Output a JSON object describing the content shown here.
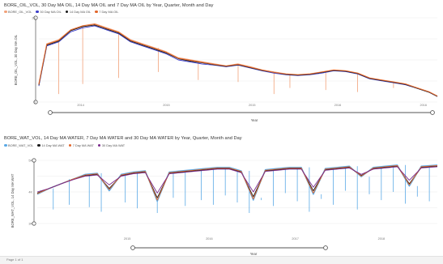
{
  "chart_data": [
    {
      "type": "line",
      "title": "BORE_OIL_VOL, 30 Day MA OIL, 14 Day MA OIL and 7 Day MA OIL by Year, Quarter, Month and Day",
      "xlabel": "Year",
      "ylabel": "BORE_OIL_VOL, 30 Day MA OIL",
      "x_ticks": [
        "2014",
        "2015",
        "2015",
        "2016",
        "2016"
      ],
      "y_ticks": [
        "2K",
        "",
        "0"
      ],
      "ylim": [
        0,
        2.1
      ],
      "grid": true,
      "legend_position": "top-left",
      "legend": [
        "BORE_OIL_VOL",
        "30 Day MA OIL",
        "14 Day MA OIL",
        "7 Day MA OIL"
      ],
      "series_colors": [
        "#f2a27a",
        "#3d3ec9",
        "#1a1a1a",
        "#e2662a"
      ],
      "x": [
        0.0,
        0.02,
        0.05,
        0.08,
        0.11,
        0.14,
        0.17,
        0.2,
        0.23,
        0.26,
        0.29,
        0.32,
        0.35,
        0.38,
        0.41,
        0.44,
        0.47,
        0.5,
        0.53,
        0.56,
        0.59,
        0.62,
        0.65,
        0.68,
        0.71,
        0.74,
        0.77,
        0.8,
        0.83,
        0.86,
        0.89,
        0.92,
        0.95,
        0.98,
        1.0
      ],
      "series": [
        {
          "values": [
            0.45,
            1.45,
            1.55,
            1.8,
            1.9,
            1.95,
            1.85,
            1.75,
            1.55,
            1.45,
            1.35,
            1.25,
            1.1,
            1.05,
            1.0,
            0.95,
            0.9,
            0.95,
            0.88,
            0.8,
            0.75,
            0.7,
            0.68,
            0.7,
            0.75,
            0.8,
            0.78,
            0.72,
            0.6,
            0.55,
            0.5,
            0.45,
            0.35,
            0.25,
            0.15
          ]
        },
        {
          "values": [
            0.4,
            1.4,
            1.5,
            1.75,
            1.85,
            1.9,
            1.8,
            1.7,
            1.5,
            1.4,
            1.3,
            1.2,
            1.05,
            1.0,
            0.95,
            0.92,
            0.88,
            0.92,
            0.85,
            0.78,
            0.72,
            0.68,
            0.66,
            0.68,
            0.72,
            0.78,
            0.76,
            0.7,
            0.58,
            0.53,
            0.48,
            0.43,
            0.34,
            0.24,
            0.14
          ]
        },
        {
          "values": [
            0.42,
            1.42,
            1.52,
            1.78,
            1.88,
            1.92,
            1.82,
            1.72,
            1.52,
            1.42,
            1.32,
            1.22,
            1.08,
            1.02,
            0.98,
            0.93,
            0.89,
            0.93,
            0.86,
            0.79,
            0.74,
            0.69,
            0.67,
            0.69,
            0.74,
            0.79,
            0.77,
            0.71,
            0.59,
            0.54,
            0.49,
            0.44,
            0.34,
            0.24,
            0.14
          ]
        },
        {
          "values": [
            0.44,
            1.44,
            1.54,
            1.8,
            1.9,
            1.94,
            1.84,
            1.74,
            1.54,
            1.44,
            1.34,
            1.24,
            1.09,
            1.04,
            0.99,
            0.94,
            0.9,
            0.94,
            0.87,
            0.8,
            0.74,
            0.7,
            0.68,
            0.7,
            0.75,
            0.8,
            0.78,
            0.72,
            0.6,
            0.55,
            0.5,
            0.45,
            0.35,
            0.25,
            0.15
          ]
        }
      ],
      "dips": [
        [
          0.05,
          0.2
        ],
        [
          0.11,
          0.45
        ],
        [
          0.2,
          0.6
        ],
        [
          0.3,
          0.75
        ],
        [
          0.4,
          0.55
        ],
        [
          0.5,
          0.5
        ],
        [
          0.59,
          0.2
        ],
        [
          0.63,
          0.35
        ],
        [
          0.72,
          0.3
        ],
        [
          0.8,
          0.25
        ],
        [
          0.89,
          0.35
        ]
      ]
    },
    {
      "type": "line",
      "title": "BORE_WAT_VOL, 14 Day MA WATER, 7 Day MA WATER and 30 Day MA WATER by Year, Quarter, Month and Day",
      "xlabel": "Year",
      "ylabel": "BORE_WAT_VOL, 14 Day MA WAT",
      "x_ticks": [
        "2015",
        "2016",
        "2017",
        "2018"
      ],
      "y_ticks": [
        "5K",
        "4K",
        "3K"
      ],
      "ylim": [
        0,
        5.4
      ],
      "grid": true,
      "legend_position": "top-left",
      "legend": [
        "BORE_WAT_VOL",
        "14 Day MA WAT",
        "7 Day MA WAT",
        "30 Day MA WAT"
      ],
      "series_colors": [
        "#5aa9e6",
        "#1a1a1a",
        "#e2662a",
        "#7b2a8c"
      ],
      "x": [
        0.0,
        0.03,
        0.06,
        0.09,
        0.12,
        0.15,
        0.18,
        0.21,
        0.24,
        0.27,
        0.3,
        0.33,
        0.36,
        0.39,
        0.42,
        0.45,
        0.48,
        0.51,
        0.54,
        0.57,
        0.6,
        0.63,
        0.66,
        0.69,
        0.72,
        0.75,
        0.78,
        0.81,
        0.84,
        0.87,
        0.9,
        0.93,
        0.96,
        1.0
      ],
      "series": [
        {
          "values": [
            2.5,
            3.0,
            3.4,
            3.8,
            4.2,
            4.3,
            2.8,
            4.2,
            4.4,
            4.5,
            1.9,
            4.4,
            4.5,
            4.6,
            4.7,
            4.8,
            4.8,
            4.5,
            2.0,
            4.6,
            4.7,
            4.8,
            4.8,
            2.5,
            4.7,
            4.8,
            4.9,
            4.0,
            4.8,
            4.9,
            5.0,
            3.2,
            4.9,
            5.0
          ]
        },
        {
          "values": [
            2.6,
            3.0,
            3.4,
            3.8,
            4.1,
            4.2,
            3.0,
            4.1,
            4.3,
            4.4,
            2.2,
            4.3,
            4.4,
            4.5,
            4.6,
            4.7,
            4.7,
            4.4,
            2.3,
            4.5,
            4.6,
            4.7,
            4.7,
            2.8,
            4.6,
            4.7,
            4.8,
            4.1,
            4.7,
            4.8,
            4.9,
            3.4,
            4.8,
            4.9
          ]
        },
        {
          "values": [
            2.55,
            3.0,
            3.4,
            3.8,
            4.15,
            4.25,
            2.9,
            4.15,
            4.35,
            4.45,
            2.0,
            4.35,
            4.45,
            4.55,
            4.65,
            4.75,
            4.75,
            4.45,
            2.1,
            4.55,
            4.65,
            4.75,
            4.75,
            2.6,
            4.65,
            4.75,
            4.85,
            4.05,
            4.75,
            4.85,
            4.95,
            3.3,
            4.85,
            4.95
          ]
        },
        {
          "values": [
            2.7,
            3.0,
            3.4,
            3.75,
            4.05,
            4.15,
            3.3,
            4.05,
            4.25,
            4.35,
            2.6,
            4.25,
            4.35,
            4.45,
            4.55,
            4.65,
            4.65,
            4.35,
            2.7,
            4.45,
            4.55,
            4.65,
            4.65,
            3.1,
            4.55,
            4.65,
            4.75,
            4.2,
            4.65,
            4.75,
            4.85,
            3.7,
            4.75,
            4.85
          ]
        }
      ],
      "spikes": [
        [
          0.04,
          1.2
        ],
        [
          0.08,
          1.6
        ],
        [
          0.13,
          1.4
        ],
        [
          0.16,
          1.0
        ],
        [
          0.22,
          1.8
        ],
        [
          0.25,
          1.3
        ],
        [
          0.3,
          0.9
        ],
        [
          0.34,
          2.2
        ],
        [
          0.37,
          1.5
        ],
        [
          0.41,
          2.0
        ],
        [
          0.44,
          1.6
        ],
        [
          0.47,
          2.4
        ],
        [
          0.5,
          1.8
        ],
        [
          0.53,
          0.9
        ],
        [
          0.56,
          2.2
        ],
        [
          0.59,
          1.5
        ],
        [
          0.62,
          2.6
        ],
        [
          0.65,
          1.9
        ],
        [
          0.68,
          1.0
        ],
        [
          0.71,
          2.1
        ],
        [
          0.74,
          1.6
        ],
        [
          0.77,
          2.8
        ],
        [
          0.8,
          1.2
        ],
        [
          0.83,
          2.5
        ],
        [
          0.86,
          2.0
        ],
        [
          0.89,
          2.7
        ],
        [
          0.92,
          1.7
        ],
        [
          0.95,
          2.3
        ],
        [
          0.98,
          1.9
        ]
      ]
    }
  ],
  "footer": {
    "label": "Page 1 of 1"
  }
}
